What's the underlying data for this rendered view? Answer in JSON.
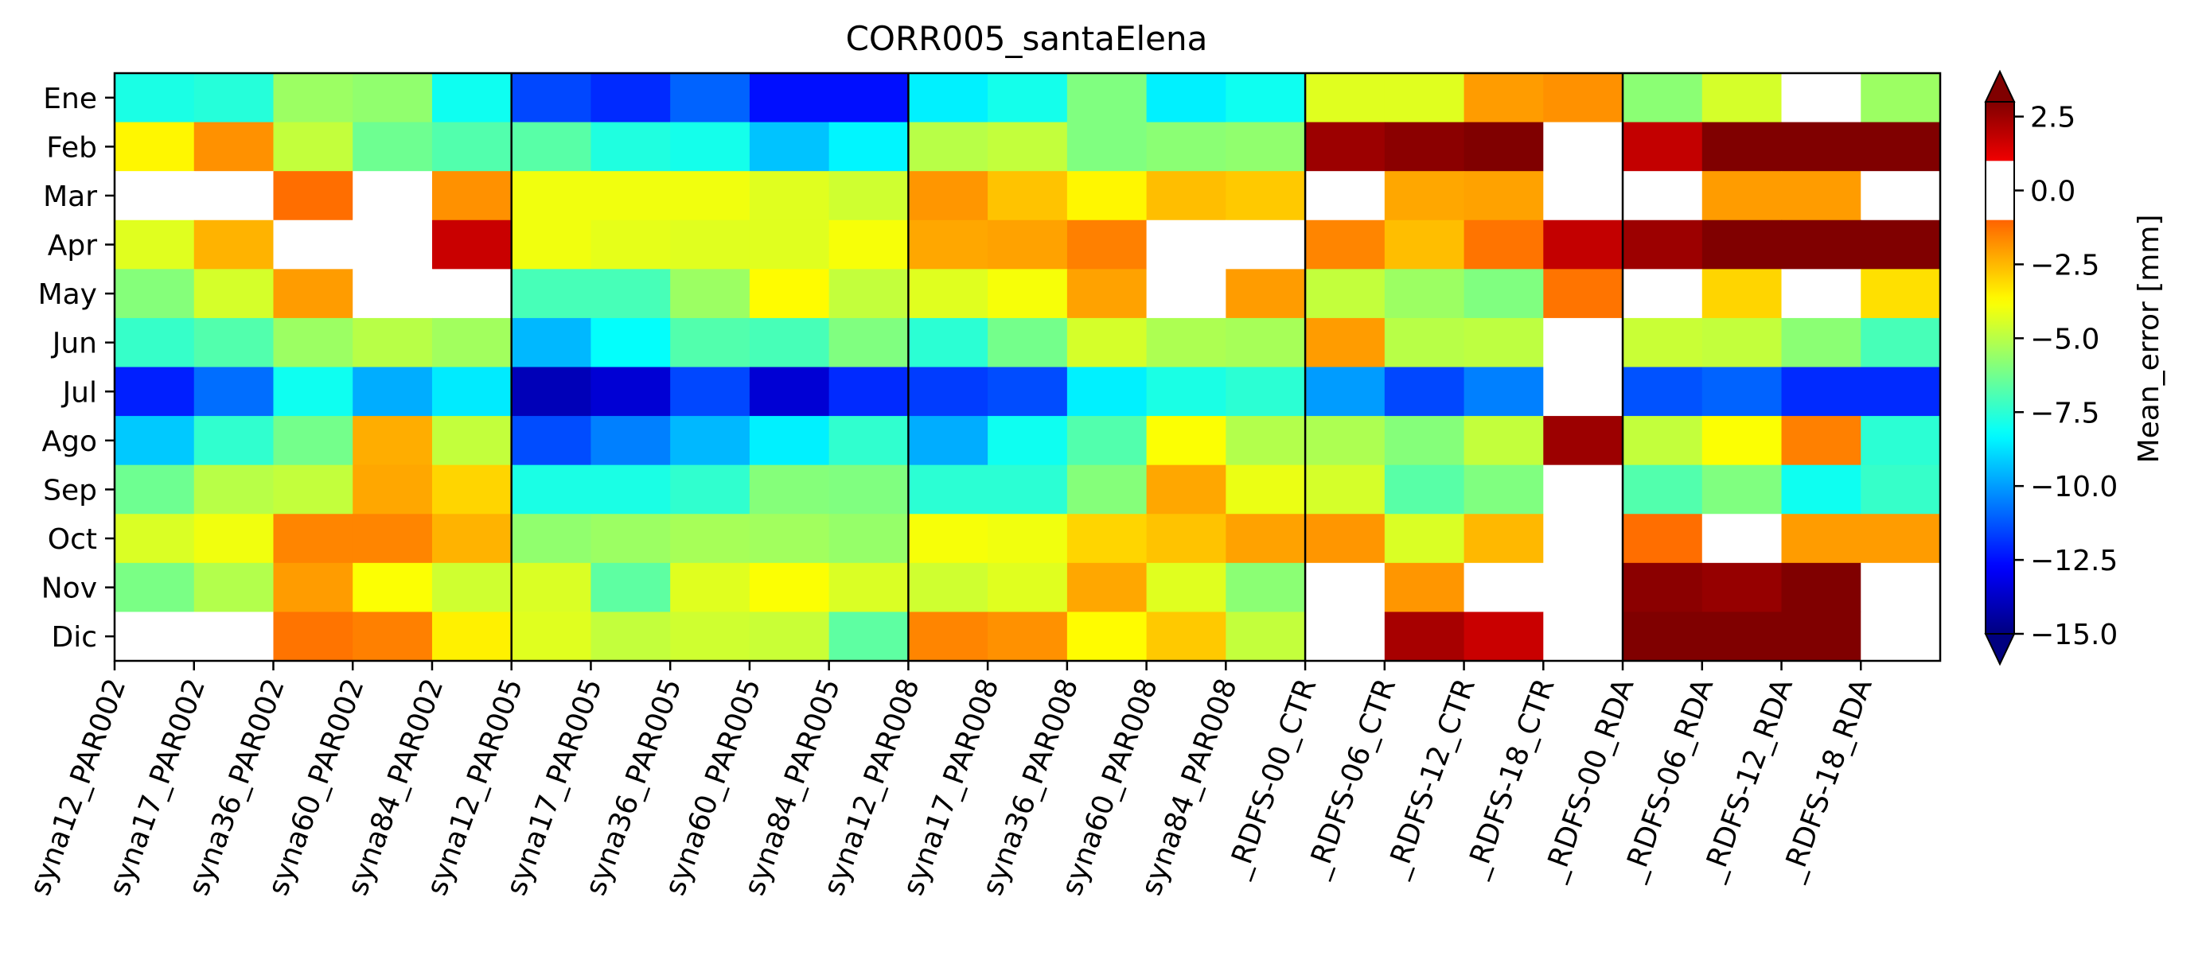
{
  "chart_data": {
    "type": "heatmap",
    "title": "CORR005_santaElena",
    "colorbar_label": "Mean_error [mm]",
    "colorbar_ticks": [
      "2.5",
      "0.0",
      "−2.5",
      "−5.0",
      "−7.5",
      "−10.0",
      "−12.5",
      "−15.0"
    ],
    "colorbar_tick_values": [
      2.5,
      0.0,
      -2.5,
      -5.0,
      -7.5,
      -10.0,
      -12.5,
      -15.0
    ],
    "colorbar_range": [
      -15,
      3
    ],
    "colorbar_white_band": [
      -1,
      1
    ],
    "colormap": "jet (white for |value| < 1)",
    "rows": [
      "Ene",
      "Feb",
      "Mar",
      "Apr",
      "May",
      "Jun",
      "Jul",
      "Ago",
      "Sep",
      "Oct",
      "Nov",
      "Dic"
    ],
    "columns": [
      "syna12_PAR002",
      "syna17_PAR002",
      "syna36_PAR002",
      "syna60_PAR002",
      "syna84_PAR002",
      "syna12_PAR005",
      "syna17_PAR005",
      "syna36_PAR005",
      "syna60_PAR005",
      "syna84_PAR005",
      "syna12_PAR008",
      "syna17_PAR008",
      "syna36_PAR008",
      "syna60_PAR008",
      "syna84_PAR008",
      "_RDFS-00_CTR",
      "_RDFS-06_CTR",
      "_RDFS-12_CTR",
      "_RDFS-18_CTR",
      "_RDFS-00_RDA",
      "_RDFS-06_RDA",
      "_RDFS-12_RDA",
      "_RDFS-18_RDA"
    ],
    "group_boundaries_after_column": [
      4,
      9,
      14,
      18
    ],
    "values": [
      [
        -7.8,
        -7.6,
        -5.5,
        -5.7,
        -8.0,
        -11.5,
        -12.0,
        -11.0,
        -12.5,
        -12.5,
        -8.5,
        -7.9,
        -6.0,
        -8.5,
        -8.0,
        -4.3,
        -4.3,
        -2.0,
        -1.8,
        -5.8,
        -4.5,
        0.0,
        -5.5
      ],
      [
        -3.6,
        -1.8,
        -4.8,
        -6.3,
        -6.8,
        -6.7,
        -7.7,
        -7.9,
        -9.3,
        -8.4,
        -5.0,
        -4.8,
        -6.0,
        -5.8,
        -5.7,
        2.5,
        2.8,
        3.2,
        0.0,
        1.8,
        3.0,
        3.0,
        3.0
      ],
      [
        0.0,
        0.0,
        -1.2,
        0.0,
        -1.8,
        -4.0,
        -4.0,
        -4.0,
        -4.3,
        -4.6,
        -1.9,
        -2.7,
        -3.6,
        -2.6,
        -2.8,
        0.0,
        -2.2,
        -2.1,
        0.0,
        0.0,
        -2.0,
        -2.0,
        0.0
      ],
      [
        -4.3,
        -2.4,
        0.0,
        0.0,
        1.7,
        -4.0,
        -4.2,
        -4.3,
        -4.3,
        -3.9,
        -2.2,
        -2.1,
        -1.5,
        0.0,
        0.0,
        -1.6,
        -2.6,
        -1.3,
        1.8,
        2.5,
        3.0,
        3.0,
        3.0
      ],
      [
        -5.9,
        -4.5,
        -2.0,
        0.0,
        0.0,
        -7.0,
        -7.0,
        -5.5,
        -3.7,
        -4.8,
        -4.3,
        -3.9,
        -2.1,
        0.0,
        -2.0,
        -4.8,
        -5.5,
        -6.0,
        -1.3,
        0.0,
        -3.0,
        0.0,
        -3.2
      ],
      [
        -7.3,
        -6.8,
        -5.5,
        -5.0,
        -5.4,
        -9.5,
        -8.2,
        -6.8,
        -7.0,
        -6.0,
        -7.5,
        -6.2,
        -4.5,
        -5.2,
        -5.3,
        -2.0,
        -5.0,
        -4.9,
        0.0,
        -4.7,
        -4.8,
        -5.8,
        -7.0
      ],
      [
        -12.2,
        -10.8,
        -8.0,
        -9.7,
        -8.6,
        -14.0,
        -13.5,
        -11.5,
        -13.5,
        -12.0,
        -11.7,
        -11.4,
        -8.5,
        -7.8,
        -7.5,
        -10.0,
        -11.5,
        -10.5,
        0.0,
        -11.3,
        -11.0,
        -12.0,
        -12.0
      ],
      [
        -9.2,
        -7.4,
        -6.2,
        -2.3,
        -4.8,
        -11.4,
        -10.5,
        -9.5,
        -8.5,
        -7.4,
        -9.7,
        -8.0,
        -6.8,
        -3.8,
        -5.1,
        -5.2,
        -5.9,
        -4.8,
        2.5,
        -4.8,
        -3.8,
        -1.5,
        -7.5
      ],
      [
        -6.3,
        -5.0,
        -4.8,
        -2.2,
        -3.0,
        -7.8,
        -7.8,
        -7.4,
        -5.9,
        -6.0,
        -7.5,
        -7.5,
        -5.9,
        -2.2,
        -4.1,
        -4.5,
        -6.7,
        -6.0,
        0.0,
        -6.8,
        -6.0,
        -8.0,
        -7.3
      ],
      [
        -4.4,
        -4.0,
        -1.6,
        -1.6,
        -2.4,
        -5.7,
        -5.5,
        -5.3,
        -5.4,
        -5.6,
        -3.9,
        -4.0,
        -3.0,
        -2.7,
        -2.1,
        -1.9,
        -4.4,
        -2.5,
        0.0,
        -1.2,
        0.0,
        -2.0,
        -2.0
      ],
      [
        -6.1,
        -5.1,
        -2.0,
        -3.8,
        -4.6,
        -4.4,
        -6.6,
        -4.3,
        -3.8,
        -4.4,
        -4.6,
        -4.3,
        -2.2,
        -4.3,
        -5.8,
        0.0,
        -1.9,
        0.0,
        0.0,
        2.8,
        2.6,
        3.1,
        0.0
      ],
      [
        0.0,
        0.0,
        -1.3,
        -1.5,
        -3.5,
        -4.3,
        -4.8,
        -4.6,
        -4.7,
        -6.6,
        -1.6,
        -1.8,
        -3.7,
        -2.8,
        -4.8,
        0.0,
        2.3,
        1.7,
        0.0,
        3.1,
        3.1,
        3.1,
        0.0
      ]
    ]
  }
}
